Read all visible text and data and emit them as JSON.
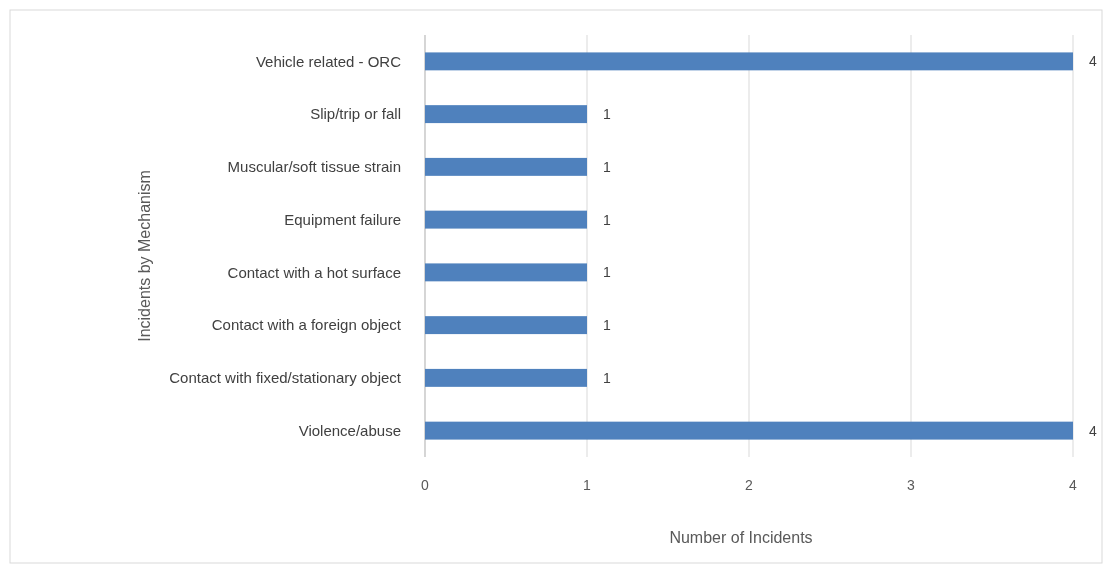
{
  "chart_data": {
    "type": "bar",
    "orientation": "horizontal",
    "xlabel": "Number of Incidents",
    "ylabel": "Incidents by Mechanism",
    "categories": [
      "Vehicle related - ORC",
      "Slip/trip or fall",
      "Muscular/soft tissue strain",
      "Equipment failure",
      "Contact with a hot surface",
      "Contact with a foreign object",
      "Contact with fixed/stationary object",
      "Violence/abuse"
    ],
    "values": [
      4,
      1,
      1,
      1,
      1,
      1,
      1,
      4
    ],
    "color": "#4f81bd",
    "xlim": [
      0,
      4
    ],
    "xticks": [
      0,
      1,
      2,
      3,
      4
    ],
    "grid": "x",
    "data_labels": true
  }
}
